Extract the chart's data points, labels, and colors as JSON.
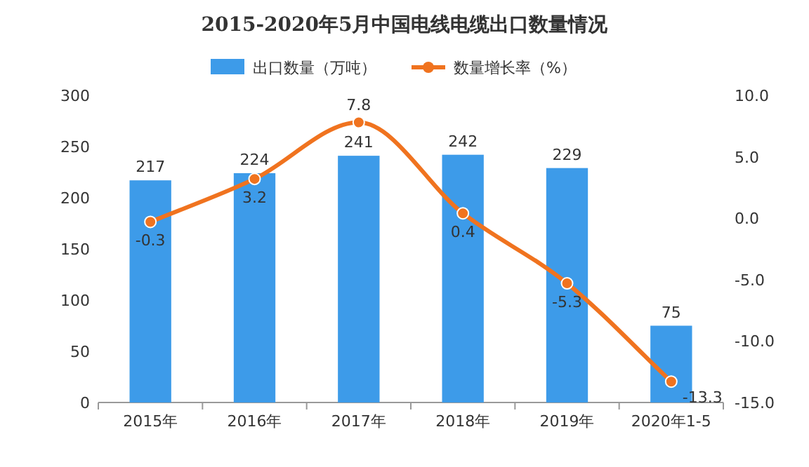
{
  "chart_data": {
    "type": "bar",
    "title": "2015-2020年5月中国电线电缆出口数量情况",
    "categories": [
      "2015年",
      "2016年",
      "2017年",
      "2018年",
      "2019年",
      "2020年1-5"
    ],
    "series": [
      {
        "name": "出口数量（万吨）",
        "color": "#3d9be9",
        "values": [
          217,
          224,
          241,
          242,
          229,
          75
        ]
      },
      {
        "name": "数量增长率（%）",
        "type": "line",
        "axis": "y2",
        "color": "#f0731f",
        "marker": "circle",
        "values": [
          -0.3,
          3.2,
          7.8,
          0.4,
          -5.3,
          -13.3
        ]
      }
    ],
    "ylim": [
      0,
      300
    ],
    "yticks": [
      0,
      50,
      100,
      150,
      200,
      250,
      300
    ],
    "y2lim": [
      -15,
      10
    ],
    "y2ticks": [
      {
        "value": -15,
        "label": "-15.0"
      },
      {
        "value": -10,
        "label": "-10.0"
      },
      {
        "value": -5,
        "label": "-5.0"
      },
      {
        "value": 0,
        "label": "0.0"
      },
      {
        "value": 5,
        "label": "5.0"
      },
      {
        "value": 10,
        "label": "10.0"
      }
    ],
    "data_labels": true,
    "legend": "top",
    "grid": false
  }
}
